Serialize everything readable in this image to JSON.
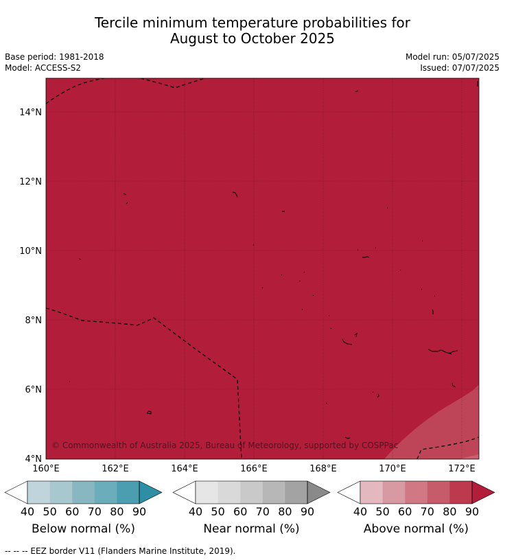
{
  "header": {
    "title_line1": "Tercile minimum temperature probabilities for",
    "title_line2": "August to October 2025",
    "base_period": "Base period: 1981-2018",
    "model": "Model: ACCESS-S2",
    "model_run": "Model run: 05/07/2025",
    "issued": "Issued: 07/07/2025"
  },
  "map": {
    "copyright": "© Commonwealth of Australia 2025, Bureau of Meteorology, supported by COSPPac",
    "fill_color": "#b21d39",
    "edge_shade_color": "#be4558",
    "edge_shade_light_color": "#c96070",
    "lon_ticks": [
      "160°E",
      "162°E",
      "164°E",
      "166°E",
      "168°E",
      "170°E",
      "172°E"
    ],
    "lat_ticks": [
      "14°N",
      "12°N",
      "10°N",
      "8°N",
      "6°N",
      "4°N"
    ]
  },
  "legends": [
    {
      "name": "below",
      "title": "Below normal (%)",
      "ticks": [
        "40",
        "50",
        "60",
        "70",
        "80",
        "90"
      ],
      "colors": [
        "#ffffff",
        "#bfd5db",
        "#a7c8ce",
        "#89b7c1",
        "#6badba",
        "#4b9db0",
        "#2e8ea3"
      ]
    },
    {
      "name": "near",
      "title": "Near normal (%)",
      "ticks": [
        "40",
        "50",
        "60",
        "70",
        "80",
        "90"
      ],
      "colors": [
        "#ffffff",
        "#e6e6e6",
        "#d9d9d9",
        "#c9c9c9",
        "#b7b7b7",
        "#a3a3a3",
        "#8a8a8a"
      ]
    },
    {
      "name": "above",
      "title": "Above normal (%)",
      "ticks": [
        "40",
        "50",
        "60",
        "70",
        "80",
        "90"
      ],
      "colors": [
        "#ffffff",
        "#e3b8bf",
        "#d79aa3",
        "#d07984",
        "#c65c6a",
        "#bd3a4e",
        "#b21d39"
      ]
    }
  ],
  "footer": {
    "eez_note": "--  --  -- EEZ border V11 (Flanders Marine Institute, 2019)."
  }
}
